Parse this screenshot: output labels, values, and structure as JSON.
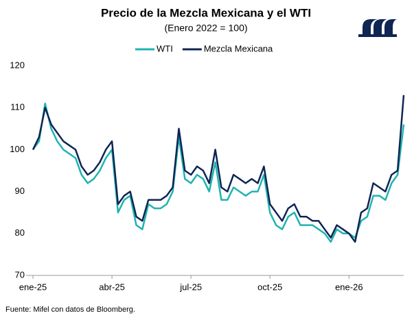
{
  "chart_data": {
    "type": "line",
    "title": "Precio de la Mezcla Mexicana y el WTI",
    "subtitle": "(Enero 2022 = 100)",
    "source": "Fuente: Mifel con datos de Bloomberg.",
    "categories": [
      "ene-25",
      null,
      null,
      null,
      null,
      null,
      null,
      null,
      null,
      null,
      null,
      null,
      null,
      "abr-25",
      null,
      null,
      null,
      null,
      null,
      null,
      null,
      null,
      null,
      null,
      null,
      null,
      "jul-25",
      null,
      null,
      null,
      null,
      null,
      null,
      null,
      null,
      null,
      null,
      null,
      null,
      "oct-25",
      null,
      null,
      null,
      null,
      null,
      null,
      null,
      null,
      null,
      null,
      null,
      null,
      "ene-26",
      null,
      null,
      null,
      null,
      null,
      null,
      null,
      null,
      null
    ],
    "series": [
      {
        "name": "WTI",
        "color": "#1fb3b0",
        "values": [
          100,
          102,
          111,
          105,
          102,
          100,
          99,
          98,
          94,
          92,
          93,
          95,
          98,
          100,
          85,
          88,
          89,
          82,
          81,
          87,
          86,
          86,
          87,
          90,
          103,
          93,
          92,
          94,
          93,
          90,
          97,
          88,
          88,
          91,
          90,
          89,
          90,
          90,
          94,
          85,
          82,
          81,
          84,
          85,
          82,
          82,
          82,
          81,
          80,
          78,
          81,
          80,
          80,
          79,
          83,
          84,
          89,
          89,
          88,
          92,
          94,
          106
        ]
      },
      {
        "name": "Mezcla Mexicana",
        "color": "#0f2553",
        "values": [
          100,
          103,
          110,
          106,
          104,
          102,
          101,
          100,
          96,
          94,
          95,
          97,
          100,
          102,
          87,
          89,
          90,
          84,
          83,
          88,
          88,
          88,
          89,
          91,
          105,
          95,
          94,
          96,
          95,
          92,
          100,
          91,
          90,
          94,
          93,
          92,
          93,
          92,
          96,
          87,
          85,
          83,
          86,
          87,
          84,
          84,
          83,
          83,
          81,
          79,
          82,
          81,
          80,
          78,
          85,
          86,
          92,
          91,
          90,
          94,
          95,
          113
        ]
      }
    ],
    "ylim": [
      70,
      120
    ],
    "yticks": [
      70,
      80,
      90,
      100,
      110,
      120
    ],
    "grid": false,
    "legend": "top"
  }
}
